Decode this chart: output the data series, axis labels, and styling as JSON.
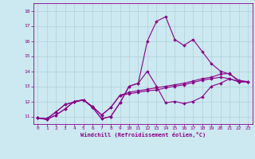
{
  "xlabel": "Windchill (Refroidissement éolien,°C)",
  "background_color": "#cce8f0",
  "line_color": "#880088",
  "xlim": [
    -0.5,
    23.5
  ],
  "ylim": [
    10.5,
    18.5
  ],
  "yticks": [
    11,
    12,
    13,
    14,
    15,
    16,
    17,
    18
  ],
  "xticks": [
    0,
    1,
    2,
    3,
    4,
    5,
    6,
    7,
    8,
    9,
    10,
    11,
    12,
    13,
    14,
    15,
    16,
    17,
    18,
    19,
    20,
    21,
    22,
    23
  ],
  "series": [
    [
      10.9,
      10.8,
      11.1,
      11.5,
      12.0,
      12.1,
      11.6,
      10.85,
      11.0,
      11.9,
      13.0,
      13.2,
      14.0,
      13.0,
      11.9,
      12.0,
      11.85,
      12.0,
      12.3,
      13.0,
      13.2,
      13.5,
      13.3,
      13.3
    ],
    [
      10.9,
      10.8,
      11.1,
      11.5,
      12.0,
      12.1,
      11.6,
      10.85,
      11.0,
      11.9,
      13.0,
      13.2,
      16.0,
      17.3,
      17.6,
      16.1,
      15.7,
      16.1,
      15.3,
      14.5,
      14.0,
      13.8,
      13.4,
      13.3
    ],
    [
      10.9,
      10.85,
      11.3,
      11.8,
      11.95,
      12.1,
      11.65,
      11.1,
      11.6,
      12.4,
      12.6,
      12.7,
      12.8,
      12.9,
      13.0,
      13.1,
      13.2,
      13.35,
      13.5,
      13.6,
      13.8,
      13.85,
      13.3,
      13.3
    ],
    [
      10.9,
      10.85,
      11.3,
      11.8,
      11.95,
      12.1,
      11.65,
      11.1,
      11.6,
      12.4,
      12.5,
      12.6,
      12.7,
      12.75,
      12.9,
      13.0,
      13.1,
      13.25,
      13.4,
      13.5,
      13.6,
      13.5,
      13.3,
      13.3
    ]
  ],
  "grid_color": "#b0d0d8",
  "marker": "D",
  "markersize": 1.8,
  "linewidth": 0.8,
  "tick_fontsize": 4.5,
  "xlabel_fontsize": 5.0
}
